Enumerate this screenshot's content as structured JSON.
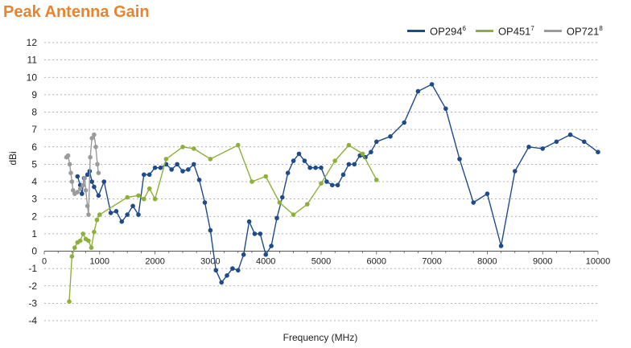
{
  "chart_data": {
    "type": "line",
    "title": "Peak Antenna Gain",
    "xlabel": "Frequency (MHz)",
    "ylabel": "dBi",
    "xlim": [
      0,
      10000
    ],
    "ylim": [
      -4,
      12
    ],
    "xticks": [
      0,
      1000,
      2000,
      3000,
      4000,
      5000,
      6000,
      7000,
      8000,
      9000,
      10000
    ],
    "yticks": [
      -4,
      -3,
      -2,
      -1,
      0,
      1,
      2,
      3,
      4,
      5,
      6,
      7,
      8,
      9,
      10,
      11,
      12
    ],
    "grid": "horizontal-dashed",
    "legend_position": "top-right",
    "series": [
      {
        "name": "OP294",
        "sup": "6",
        "color": "#1e4b8a",
        "points": [
          [
            600,
            4.3
          ],
          [
            650,
            3.8
          ],
          [
            680,
            3.3
          ],
          [
            720,
            4.2
          ],
          [
            780,
            4.4
          ],
          [
            820,
            4.6
          ],
          [
            860,
            4.0
          ],
          [
            900,
            3.7
          ],
          [
            980,
            3.2
          ],
          [
            1080,
            4.0
          ],
          [
            1200,
            2.2
          ],
          [
            1300,
            2.3
          ],
          [
            1400,
            1.7
          ],
          [
            1500,
            2.1
          ],
          [
            1600,
            2.6
          ],
          [
            1700,
            2.1
          ],
          [
            1800,
            4.4
          ],
          [
            1900,
            4.4
          ],
          [
            2000,
            4.8
          ],
          [
            2100,
            4.8
          ],
          [
            2200,
            5.0
          ],
          [
            2300,
            4.7
          ],
          [
            2400,
            5.0
          ],
          [
            2500,
            4.6
          ],
          [
            2600,
            4.7
          ],
          [
            2700,
            5.0
          ],
          [
            2800,
            4.1
          ],
          [
            2900,
            2.8
          ],
          [
            3000,
            1.2
          ],
          [
            3100,
            -1.1
          ],
          [
            3200,
            -1.8
          ],
          [
            3300,
            -1.4
          ],
          [
            3400,
            -1.0
          ],
          [
            3500,
            -1.1
          ],
          [
            3600,
            -0.2
          ],
          [
            3700,
            1.7
          ],
          [
            3800,
            1.0
          ],
          [
            3900,
            1.0
          ],
          [
            4000,
            -0.2
          ],
          [
            4100,
            0.3
          ],
          [
            4200,
            1.9
          ],
          [
            4300,
            3.1
          ],
          [
            4400,
            4.5
          ],
          [
            4500,
            5.2
          ],
          [
            4600,
            5.6
          ],
          [
            4700,
            5.2
          ],
          [
            4800,
            4.8
          ],
          [
            4900,
            4.8
          ],
          [
            5000,
            4.8
          ],
          [
            5100,
            4.0
          ],
          [
            5200,
            3.8
          ],
          [
            5300,
            3.8
          ],
          [
            5400,
            4.4
          ],
          [
            5500,
            5.0
          ],
          [
            5600,
            5.0
          ],
          [
            5700,
            5.5
          ],
          [
            5800,
            5.4
          ],
          [
            5900,
            5.7
          ],
          [
            6000,
            6.3
          ],
          [
            6250,
            6.6
          ],
          [
            6500,
            7.4
          ],
          [
            6750,
            9.2
          ],
          [
            7000,
            9.6
          ],
          [
            7250,
            8.2
          ],
          [
            7500,
            5.3
          ],
          [
            7750,
            2.8
          ],
          [
            8000,
            3.3
          ],
          [
            8250,
            0.3
          ],
          [
            8500,
            4.6
          ],
          [
            8750,
            6.0
          ],
          [
            9000,
            5.9
          ],
          [
            9250,
            6.3
          ],
          [
            9500,
            6.7
          ],
          [
            9750,
            6.3
          ],
          [
            10000,
            5.7
          ]
        ]
      },
      {
        "name": "OP451",
        "sup": "7",
        "color": "#8db03b",
        "points": [
          [
            450,
            -2.9
          ],
          [
            500,
            -0.3
          ],
          [
            550,
            0.2
          ],
          [
            600,
            0.5
          ],
          [
            650,
            0.6
          ],
          [
            700,
            1.0
          ],
          [
            750,
            0.7
          ],
          [
            800,
            0.6
          ],
          [
            850,
            0.2
          ],
          [
            900,
            1.1
          ],
          [
            950,
            1.8
          ],
          [
            1000,
            2.1
          ],
          [
            1500,
            3.1
          ],
          [
            1700,
            3.2
          ],
          [
            1800,
            3.0
          ],
          [
            1900,
            3.6
          ],
          [
            2000,
            3.0
          ],
          [
            2200,
            5.3
          ],
          [
            2500,
            6.0
          ],
          [
            2700,
            5.9
          ],
          [
            3000,
            5.3
          ],
          [
            3500,
            6.1
          ],
          [
            3750,
            4.0
          ],
          [
            4000,
            4.3
          ],
          [
            4250,
            2.8
          ],
          [
            4500,
            2.1
          ],
          [
            4750,
            2.7
          ],
          [
            5000,
            3.9
          ],
          [
            5250,
            5.2
          ],
          [
            5500,
            6.1
          ],
          [
            5750,
            5.6
          ],
          [
            6000,
            4.1
          ]
        ]
      },
      {
        "name": "OP721",
        "sup": "8",
        "color": "#9b9b9b",
        "points": [
          [
            400,
            5.4
          ],
          [
            430,
            5.5
          ],
          [
            460,
            5.0
          ],
          [
            480,
            4.5
          ],
          [
            500,
            4.0
          ],
          [
            520,
            3.5
          ],
          [
            550,
            3.3
          ],
          [
            600,
            3.4
          ],
          [
            650,
            3.6
          ],
          [
            700,
            3.8
          ],
          [
            730,
            4.2
          ],
          [
            750,
            3.5
          ],
          [
            780,
            2.6
          ],
          [
            800,
            2.1
          ],
          [
            830,
            5.4
          ],
          [
            860,
            6.5
          ],
          [
            900,
            6.7
          ],
          [
            930,
            6.0
          ],
          [
            960,
            5.0
          ],
          [
            980,
            4.5
          ]
        ]
      }
    ]
  }
}
